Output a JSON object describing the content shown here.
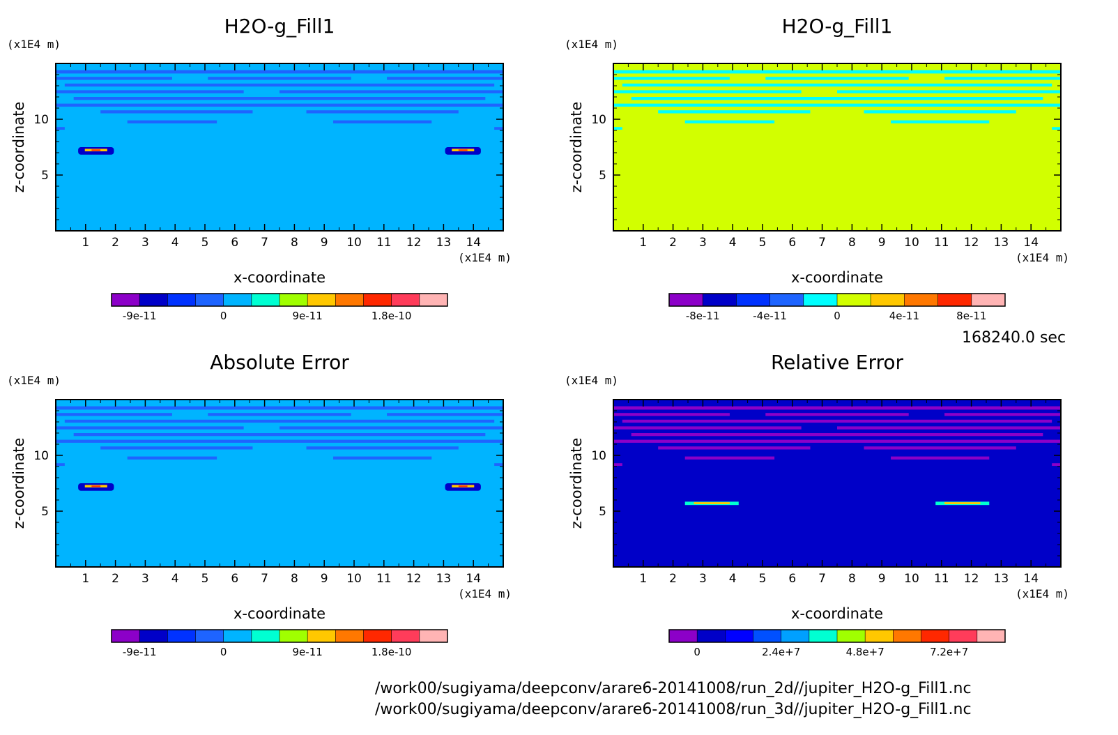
{
  "time_label": "168240.0 sec",
  "file_paths": [
    "/work00/sugiyama/deepconv/arare6-20141008/run_2d//jupiter_H2O-g_Fill1.nc",
    "/work00/sugiyama/deepconv/arare6-20141008/run_3d//jupiter_H2O-g_Fill1.nc"
  ],
  "chart_data": [
    {
      "type": "heatmap",
      "title": "H2O-g_Fill1",
      "xlabel": "x-coordinate",
      "ylabel": "z-coordinate",
      "x_unit": "(x1E4 m)",
      "y_unit": "(x1E4 m)",
      "xlim": [
        0,
        15
      ],
      "ylim": [
        0,
        15
      ],
      "x_ticks": [
        "1",
        "2",
        "3",
        "4",
        "5",
        "6",
        "7",
        "8",
        "9",
        "10",
        "11",
        "12",
        "13",
        "14"
      ],
      "y_ticks": [
        "5",
        "10"
      ],
      "background_color": "#00b4ff",
      "band_color": "#1e64ff",
      "colorbar": {
        "colors": [
          "#8c00c8",
          "#0000c8",
          "#0032ff",
          "#1e64ff",
          "#00b4ff",
          "#00ffd2",
          "#a0ff00",
          "#ffc800",
          "#ff7800",
          "#ff2800",
          "#ff3c5a",
          "#ffb4b4"
        ],
        "labels": [
          "-9e-11",
          "0",
          "9e-11",
          "1.8e-10"
        ]
      }
    },
    {
      "type": "heatmap",
      "title": "H2O-g_Fill1",
      "xlabel": "x-coordinate",
      "ylabel": "z-coordinate",
      "x_unit": "(x1E4 m)",
      "y_unit": "(x1E4 m)",
      "xlim": [
        0,
        15
      ],
      "ylim": [
        0,
        15
      ],
      "x_ticks": [
        "1",
        "2",
        "3",
        "4",
        "5",
        "6",
        "7",
        "8",
        "9",
        "10",
        "11",
        "12",
        "13",
        "14"
      ],
      "y_ticks": [
        "5",
        "10"
      ],
      "background_color": "#d2ff00",
      "band_color": "#00ffff",
      "colorbar": {
        "colors": [
          "#8c00c8",
          "#0000c8",
          "#0032ff",
          "#1e64ff",
          "#00ffff",
          "#d2ff00",
          "#ffc800",
          "#ff7800",
          "#ff2800",
          "#ffb4b4"
        ],
        "labels": [
          "-8e-11",
          "-4e-11",
          "0",
          "4e-11",
          "8e-11"
        ]
      }
    },
    {
      "type": "heatmap",
      "title": "Absolute Error",
      "xlabel": "x-coordinate",
      "ylabel": "z-coordinate",
      "x_unit": "(x1E4 m)",
      "y_unit": "(x1E4 m)",
      "xlim": [
        0,
        15
      ],
      "ylim": [
        0,
        15
      ],
      "x_ticks": [
        "1",
        "2",
        "3",
        "4",
        "5",
        "6",
        "7",
        "8",
        "9",
        "10",
        "11",
        "12",
        "13",
        "14"
      ],
      "y_ticks": [
        "5",
        "10"
      ],
      "background_color": "#00b4ff",
      "band_color": "#1e64ff",
      "colorbar": {
        "colors": [
          "#8c00c8",
          "#0000c8",
          "#0032ff",
          "#1e64ff",
          "#00b4ff",
          "#00ffd2",
          "#a0ff00",
          "#ffc800",
          "#ff7800",
          "#ff2800",
          "#ff3c5a",
          "#ffb4b4"
        ],
        "labels": [
          "-9e-11",
          "0",
          "9e-11",
          "1.8e-10"
        ]
      }
    },
    {
      "type": "heatmap",
      "title": "Relative Error",
      "xlabel": "x-coordinate",
      "ylabel": "z-coordinate",
      "x_unit": "(x1E4 m)",
      "y_unit": "(x1E4 m)",
      "xlim": [
        0,
        15
      ],
      "ylim": [
        0,
        15
      ],
      "x_ticks": [
        "1",
        "2",
        "3",
        "4",
        "5",
        "6",
        "7",
        "8",
        "9",
        "10",
        "11",
        "12",
        "13",
        "14"
      ],
      "y_ticks": [
        "5",
        "10"
      ],
      "background_color": "#0000c8",
      "band_color": "#8c00c8",
      "colorbar": {
        "colors": [
          "#8c00c8",
          "#0000c8",
          "#0000ff",
          "#0050ff",
          "#00a0ff",
          "#00ffd2",
          "#a0ff00",
          "#ffc800",
          "#ff7800",
          "#ff2800",
          "#ff3c5a",
          "#ffb4b4"
        ],
        "labels": [
          "0",
          "2.4e+7",
          "4.8e+7",
          "7.2e+7"
        ]
      }
    }
  ]
}
